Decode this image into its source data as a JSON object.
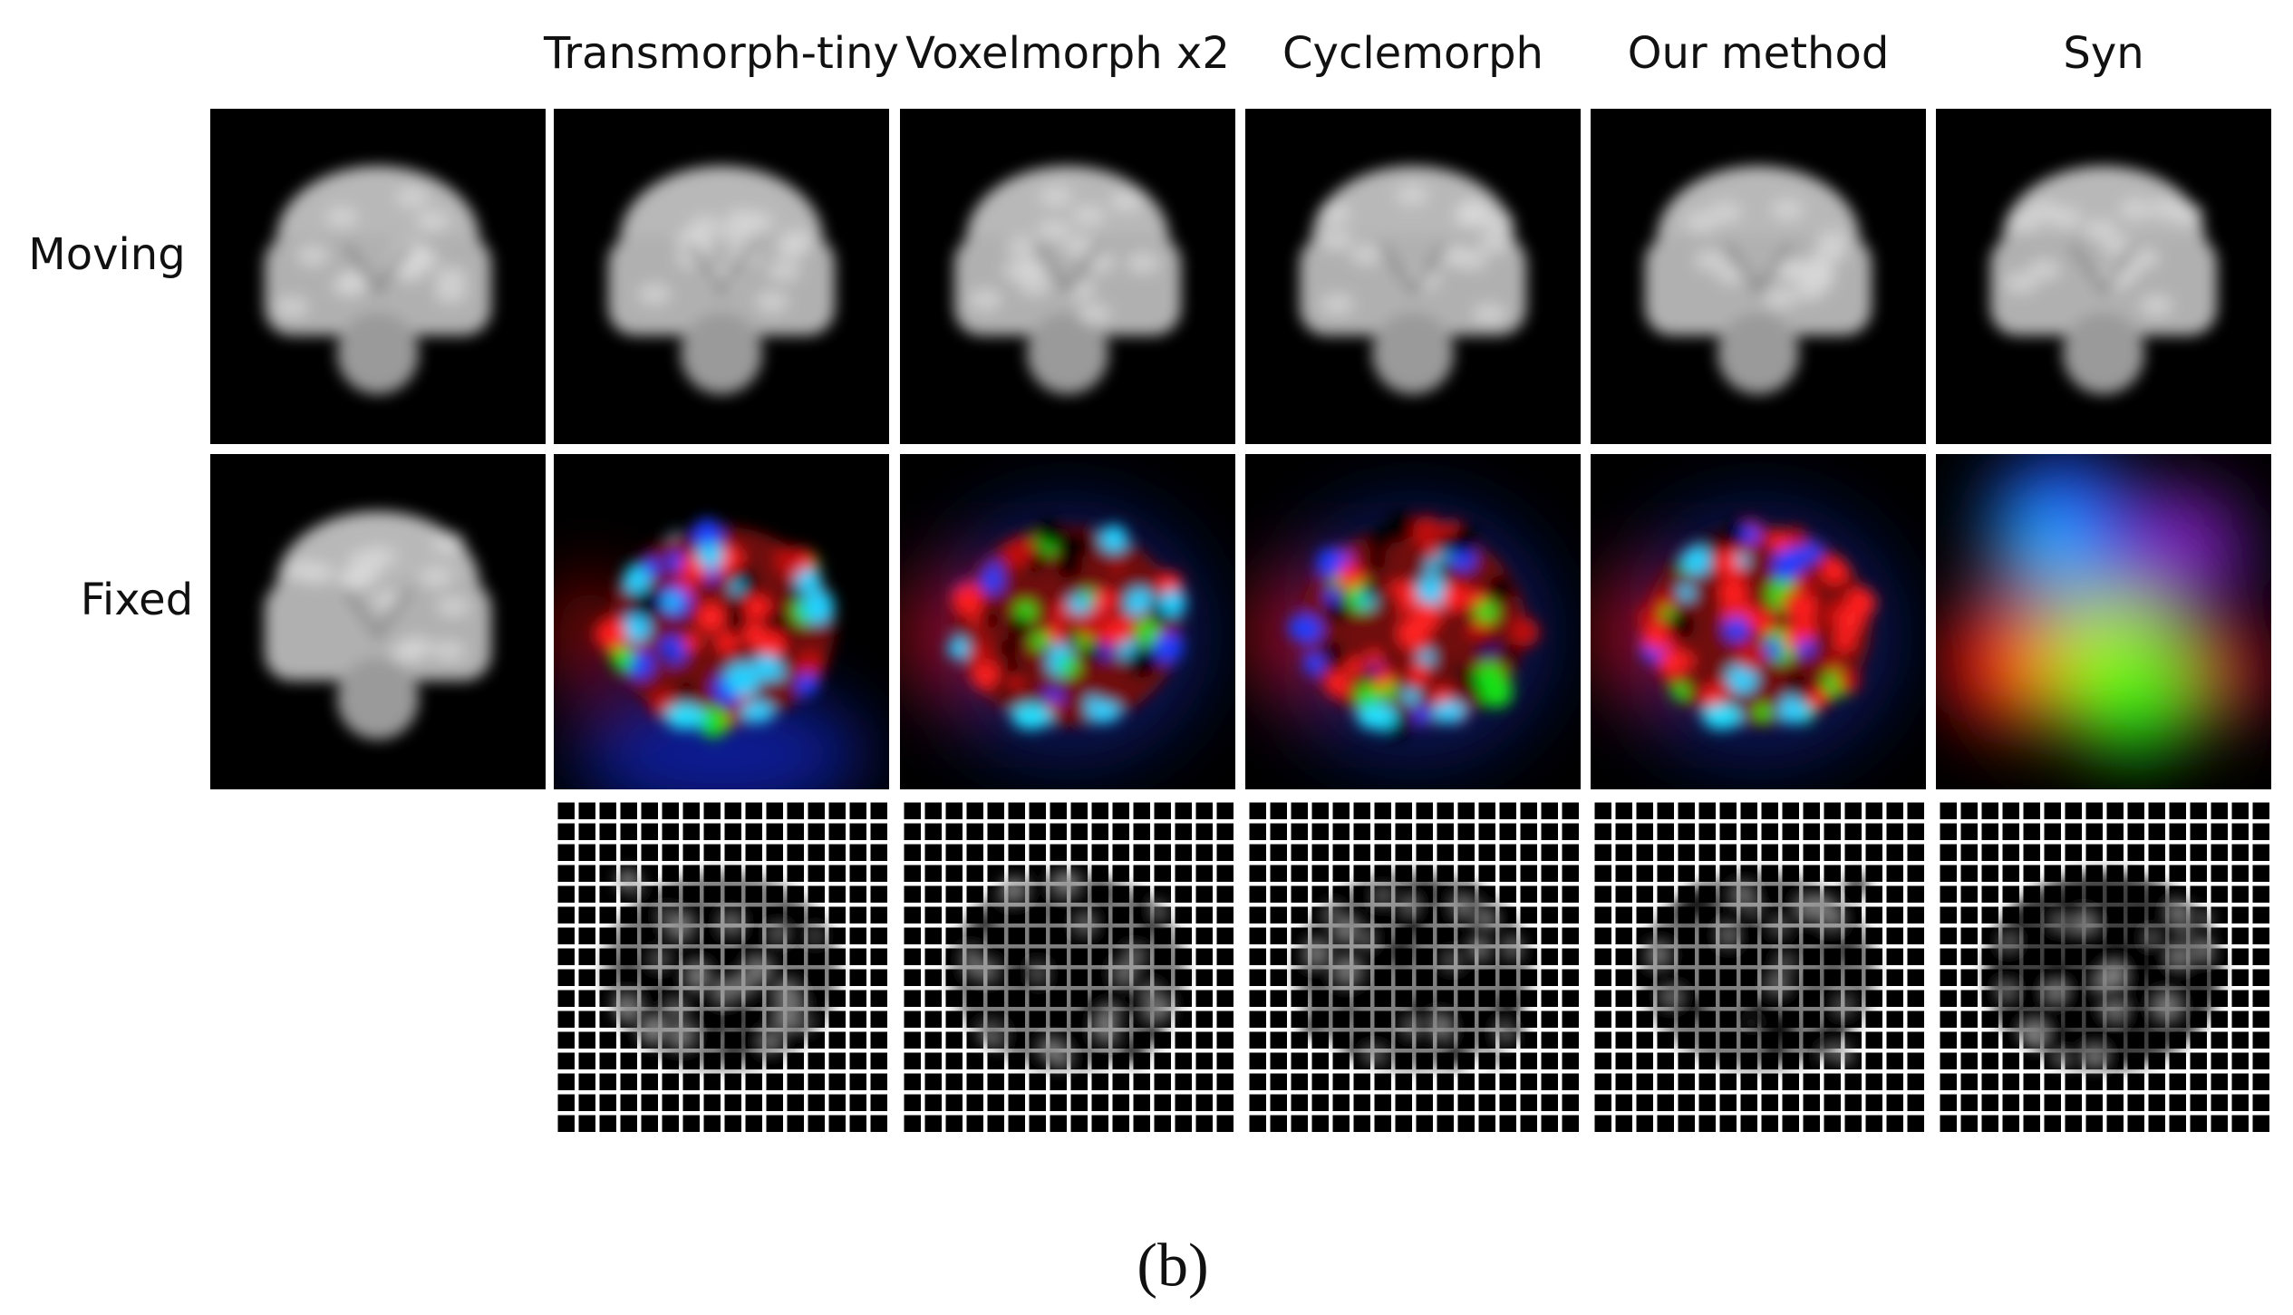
{
  "header": {
    "columns": [
      "Transmorph-tiny",
      "Voxelmorph x2",
      "Cyclemorph",
      "Our method",
      "Syn"
    ]
  },
  "rows": [
    "Moving",
    "Fixed"
  ],
  "caption": "(b)"
}
